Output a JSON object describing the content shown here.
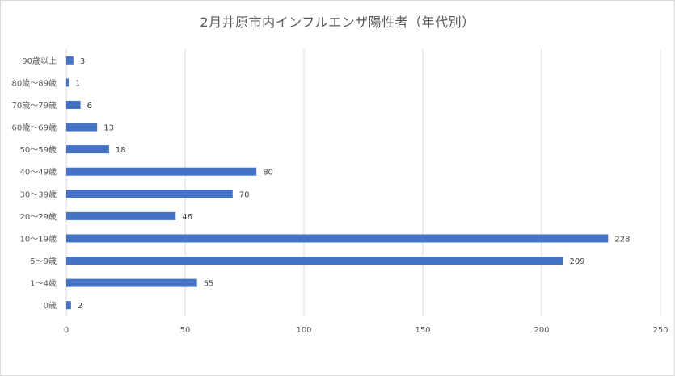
{
  "chart_data": {
    "type": "bar",
    "orientation": "horizontal",
    "title": "2月井原市内インフルエンザ陽性者（年代別）",
    "categories": [
      "90歳以上",
      "80歳〜89歳",
      "70歳〜79歳",
      "60歳〜69歳",
      "50〜59歳",
      "40〜49歳",
      "30〜39歳",
      "20〜29歳",
      "10〜19歳",
      "5〜9歳",
      "1〜4歳",
      "0歳"
    ],
    "values": [
      3,
      1,
      6,
      13,
      18,
      80,
      70,
      46,
      228,
      209,
      55,
      2
    ],
    "xlim": [
      0,
      250
    ],
    "xticks": [
      0,
      50,
      100,
      150,
      200,
      250
    ],
    "grid": "vertical",
    "data_labels": true,
    "bar_color": "#4472c4"
  }
}
